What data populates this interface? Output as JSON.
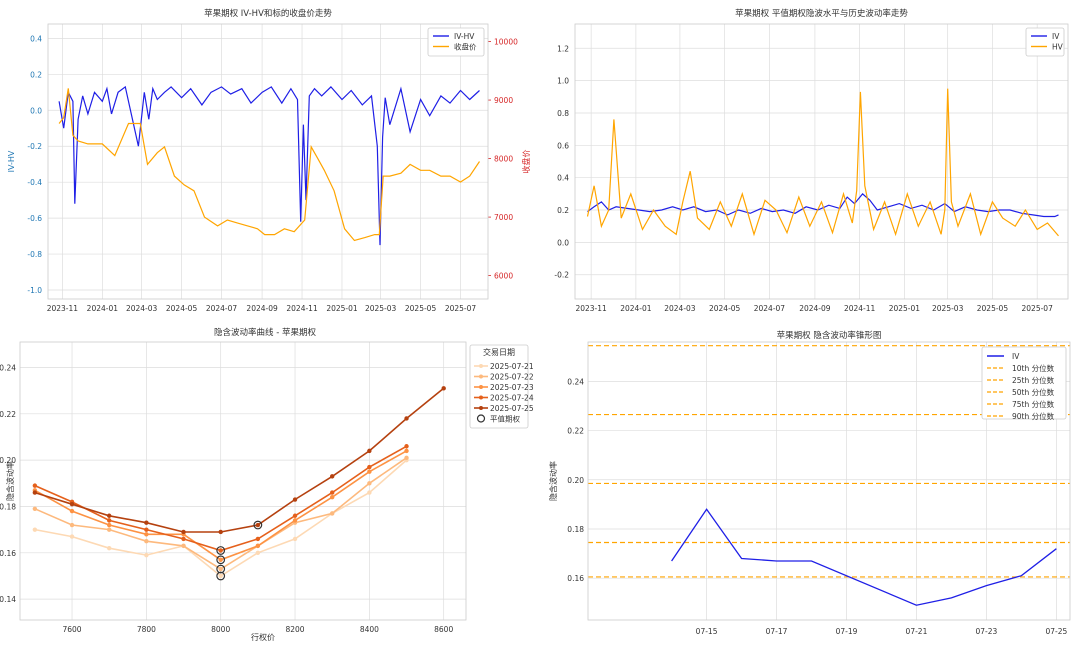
{
  "colors": {
    "blue": "#1f1fe6",
    "orange": "#ffa500",
    "red": "#d62728",
    "axis_blue": "#1f77b4",
    "grid": "#dddddd",
    "spine": "#cccccc"
  },
  "chart_data": [
    {
      "id": "p1",
      "type": "line",
      "title": "苹果期权 IV-HV和标的收盘价走势",
      "ylabel_left": "IV-HV",
      "ylabel_right": "收盘价",
      "ylim_left": [
        -1.05,
        0.48
      ],
      "ylim_right": [
        5600,
        10300
      ],
      "yticks_left": [
        -1.0,
        -0.8,
        -0.6,
        -0.4,
        -0.2,
        0.0,
        0.2,
        0.4
      ],
      "yticks_right": [
        6000,
        7000,
        8000,
        9000,
        10000
      ],
      "xlim": [
        "2023-10-10",
        "2025-08-12"
      ],
      "xticks": [
        "2023-11",
        "2024-01",
        "2024-03",
        "2024-05",
        "2024-07",
        "2024-09",
        "2024-11",
        "2025-01",
        "2025-03",
        "2025-05",
        "2025-07"
      ],
      "legend": "top-right",
      "grid": true,
      "series": [
        {
          "name": "IV-HV",
          "axis": "left",
          "color": "#1f1fe6",
          "x": [
            "2023-10-27",
            "2023-11-03",
            "2023-11-10",
            "2023-11-17",
            "2023-11-20",
            "2023-11-25",
            "2023-12-02",
            "2023-12-10",
            "2023-12-20",
            "2024-01-01",
            "2024-01-08",
            "2024-01-15",
            "2024-01-25",
            "2024-02-05",
            "2024-02-25",
            "2024-03-05",
            "2024-03-12",
            "2024-03-18",
            "2024-03-25",
            "2024-04-05",
            "2024-04-15",
            "2024-05-01",
            "2024-05-15",
            "2024-06-01",
            "2024-06-15",
            "2024-07-01",
            "2024-07-15",
            "2024-08-01",
            "2024-08-15",
            "2024-09-01",
            "2024-09-15",
            "2024-10-01",
            "2024-10-15",
            "2024-10-25",
            "2024-10-30",
            "2024-11-03",
            "2024-11-07",
            "2024-11-12",
            "2024-11-20",
            "2024-12-01",
            "2024-12-15",
            "2025-01-01",
            "2025-01-15",
            "2025-02-01",
            "2025-02-15",
            "2025-02-24",
            "2025-02-28",
            "2025-03-04",
            "2025-03-08",
            "2025-03-15",
            "2025-04-01",
            "2025-04-15",
            "2025-05-01",
            "2025-05-15",
            "2025-06-01",
            "2025-06-15",
            "2025-07-01",
            "2025-07-15",
            "2025-07-30"
          ],
          "values": [
            0.05,
            -0.1,
            0.1,
            0.05,
            -0.52,
            -0.05,
            0.08,
            -0.02,
            0.1,
            0.05,
            0.12,
            -0.02,
            0.1,
            0.13,
            -0.2,
            0.1,
            -0.05,
            0.12,
            0.06,
            0.1,
            0.13,
            0.07,
            0.12,
            0.03,
            0.1,
            0.13,
            0.09,
            0.12,
            0.04,
            0.1,
            0.13,
            0.04,
            0.12,
            0.06,
            -0.62,
            -0.08,
            -0.5,
            0.08,
            0.12,
            0.08,
            0.13,
            0.06,
            0.11,
            0.03,
            0.08,
            -0.2,
            -0.75,
            -0.15,
            0.07,
            -0.08,
            0.12,
            -0.12,
            0.06,
            -0.03,
            0.08,
            0.04,
            0.11,
            0.06,
            0.11
          ]
        },
        {
          "name": "收盘价",
          "axis": "right",
          "color": "#ffa500",
          "x": [
            "2023-10-27",
            "2023-11-03",
            "2023-11-10",
            "2023-11-17",
            "2023-11-25",
            "2023-12-10",
            "2024-01-01",
            "2024-01-20",
            "2024-02-10",
            "2024-02-28",
            "2024-03-10",
            "2024-03-25",
            "2024-04-05",
            "2024-04-20",
            "2024-05-05",
            "2024-05-20",
            "2024-06-05",
            "2024-06-25",
            "2024-07-10",
            "2024-07-25",
            "2024-08-10",
            "2024-08-25",
            "2024-09-05",
            "2024-09-20",
            "2024-10-05",
            "2024-10-20",
            "2024-11-05",
            "2024-11-15",
            "2024-11-25",
            "2024-12-05",
            "2024-12-20",
            "2025-01-05",
            "2025-01-20",
            "2025-02-05",
            "2025-02-20",
            "2025-02-27",
            "2025-03-05",
            "2025-03-15",
            "2025-04-01",
            "2025-04-15",
            "2025-05-01",
            "2025-05-15",
            "2025-06-01",
            "2025-06-15",
            "2025-07-01",
            "2025-07-15",
            "2025-07-30"
          ],
          "values": [
            8600,
            8700,
            9200,
            8400,
            8300,
            8250,
            8250,
            8050,
            8600,
            8600,
            7900,
            8100,
            8200,
            7700,
            7550,
            7450,
            7000,
            6850,
            6950,
            6900,
            6850,
            6800,
            6700,
            6700,
            6800,
            6750,
            6950,
            8200,
            8000,
            7800,
            7450,
            6800,
            6600,
            6650,
            6700,
            6700,
            7700,
            7700,
            7750,
            7900,
            7800,
            7800,
            7700,
            7700,
            7600,
            7700,
            7950
          ]
        }
      ]
    },
    {
      "id": "p2",
      "type": "line",
      "title": "苹果期权 平值期权隐波水平与历史波动率走势",
      "ylim": [
        -0.35,
        1.35
      ],
      "yticks": [
        -0.2,
        0.0,
        0.2,
        0.4,
        0.6,
        0.8,
        1.0,
        1.2
      ],
      "xlim": [
        "2023-10-10",
        "2025-08-12"
      ],
      "xticks": [
        "2023-11",
        "2024-01",
        "2024-03",
        "2024-05",
        "2024-07",
        "2024-09",
        "2024-11",
        "2025-01",
        "2025-03",
        "2025-05",
        "2025-07"
      ],
      "legend": "top-right",
      "grid": true,
      "series": [
        {
          "name": "IV",
          "color": "#1f1fe6",
          "x": [
            "2023-10-27",
            "2023-11-05",
            "2023-11-15",
            "2023-11-25",
            "2023-12-05",
            "2023-12-20",
            "2024-01-05",
            "2024-01-20",
            "2024-02-05",
            "2024-02-20",
            "2024-03-05",
            "2024-03-20",
            "2024-04-05",
            "2024-04-20",
            "2024-05-05",
            "2024-05-20",
            "2024-06-05",
            "2024-06-20",
            "2024-07-05",
            "2024-07-20",
            "2024-08-05",
            "2024-08-20",
            "2024-09-05",
            "2024-09-20",
            "2024-10-05",
            "2024-10-15",
            "2024-10-25",
            "2024-11-05",
            "2024-11-15",
            "2024-11-25",
            "2024-12-10",
            "2024-12-25",
            "2025-01-10",
            "2025-01-25",
            "2025-02-10",
            "2025-02-25",
            "2025-03-10",
            "2025-03-25",
            "2025-04-10",
            "2025-04-25",
            "2025-05-10",
            "2025-05-25",
            "2025-06-10",
            "2025-06-25",
            "2025-07-10",
            "2025-07-25",
            "2025-07-30"
          ],
          "values": [
            0.19,
            0.22,
            0.25,
            0.2,
            0.22,
            0.21,
            0.2,
            0.19,
            0.2,
            0.22,
            0.2,
            0.22,
            0.19,
            0.2,
            0.17,
            0.2,
            0.18,
            0.21,
            0.19,
            0.2,
            0.18,
            0.22,
            0.2,
            0.23,
            0.21,
            0.28,
            0.24,
            0.3,
            0.26,
            0.2,
            0.22,
            0.24,
            0.21,
            0.23,
            0.2,
            0.24,
            0.19,
            0.22,
            0.2,
            0.19,
            0.2,
            0.2,
            0.18,
            0.17,
            0.16,
            0.16,
            0.17
          ]
        },
        {
          "name": "HV",
          "color": "#ffa500",
          "x": [
            "2023-10-27",
            "2023-11-05",
            "2023-11-15",
            "2023-11-25",
            "2023-12-02",
            "2023-12-12",
            "2023-12-25",
            "2024-01-10",
            "2024-01-25",
            "2024-02-10",
            "2024-02-25",
            "2024-03-05",
            "2024-03-15",
            "2024-03-25",
            "2024-04-10",
            "2024-04-25",
            "2024-05-10",
            "2024-05-25",
            "2024-06-10",
            "2024-06-25",
            "2024-07-10",
            "2024-07-25",
            "2024-08-10",
            "2024-08-25",
            "2024-09-10",
            "2024-09-25",
            "2024-10-10",
            "2024-10-22",
            "2024-10-28",
            "2024-11-02",
            "2024-11-08",
            "2024-11-20",
            "2024-12-05",
            "2024-12-20",
            "2025-01-05",
            "2025-01-20",
            "2025-02-05",
            "2025-02-20",
            "2025-02-25",
            "2025-03-01",
            "2025-03-06",
            "2025-03-15",
            "2025-04-01",
            "2025-04-15",
            "2025-05-01",
            "2025-05-15",
            "2025-06-01",
            "2025-06-15",
            "2025-07-01",
            "2025-07-15",
            "2025-07-30"
          ],
          "values": [
            0.16,
            0.35,
            0.1,
            0.2,
            0.76,
            0.15,
            0.3,
            0.08,
            0.2,
            0.1,
            0.05,
            0.25,
            0.44,
            0.15,
            0.08,
            0.25,
            0.1,
            0.3,
            0.05,
            0.26,
            0.2,
            0.06,
            0.28,
            0.1,
            0.25,
            0.06,
            0.3,
            0.12,
            0.32,
            0.93,
            0.35,
            0.08,
            0.25,
            0.05,
            0.3,
            0.1,
            0.25,
            0.05,
            0.2,
            0.95,
            0.25,
            0.1,
            0.3,
            0.05,
            0.25,
            0.15,
            0.1,
            0.2,
            0.08,
            0.12,
            0.04
          ]
        }
      ]
    },
    {
      "id": "p3",
      "type": "line",
      "title": "隐含波动率曲线 - 苹果期权",
      "xlabel": "行权价",
      "ylabel": "隐含波动率",
      "xlim": [
        7460,
        8660
      ],
      "ylim": [
        0.131,
        0.251
      ],
      "xticks": [
        7600,
        7800,
        8000,
        8200,
        8400,
        8600
      ],
      "yticks": [
        0.14,
        0.16,
        0.18,
        0.2,
        0.22,
        0.24
      ],
      "legend_title": "交易日期",
      "legend": "top-right",
      "grid": true,
      "series": [
        {
          "name": "2025-07-21",
          "color": "#fdd9b4",
          "x": [
            7500,
            7600,
            7700,
            7800,
            7900,
            8000,
            8100,
            8200,
            8300,
            8400,
            8500
          ],
          "values": [
            0.17,
            0.167,
            0.162,
            0.159,
            0.163,
            0.15,
            0.16,
            0.166,
            0.177,
            0.186,
            0.2
          ]
        },
        {
          "name": "2025-07-22",
          "color": "#fdb97d",
          "x": [
            7500,
            7600,
            7700,
            7800,
            7900,
            8000,
            8100,
            8200,
            8300,
            8400,
            8500
          ],
          "values": [
            0.179,
            0.172,
            0.17,
            0.165,
            0.163,
            0.153,
            0.163,
            0.173,
            0.177,
            0.19,
            0.201
          ]
        },
        {
          "name": "2025-07-23",
          "color": "#fd9243",
          "x": [
            7500,
            7600,
            7700,
            7800,
            7900,
            8000,
            8100,
            8200,
            8300,
            8400,
            8500
          ],
          "values": [
            0.187,
            0.178,
            0.172,
            0.168,
            0.168,
            0.157,
            0.163,
            0.174,
            0.184,
            0.195,
            0.204
          ]
        },
        {
          "name": "2025-07-24",
          "color": "#e5601b",
          "x": [
            7500,
            7600,
            7700,
            7800,
            7900,
            8000,
            8100,
            8200,
            8300,
            8400,
            8500
          ],
          "values": [
            0.189,
            0.182,
            0.174,
            0.17,
            0.166,
            0.161,
            0.166,
            0.176,
            0.186,
            0.197,
            0.206
          ]
        },
        {
          "name": "2025-07-25",
          "color": "#b5410f",
          "x": [
            7500,
            7600,
            7700,
            7800,
            7900,
            8000,
            8100,
            8200,
            8300,
            8400,
            8500,
            8600
          ],
          "values": [
            0.186,
            0.181,
            0.176,
            0.173,
            0.169,
            0.169,
            0.172,
            0.183,
            0.193,
            0.204,
            0.218,
            0.231
          ]
        }
      ],
      "atm_points": [
        {
          "x": 8000,
          "y": 0.15
        },
        {
          "x": 8000,
          "y": 0.153
        },
        {
          "x": 8000,
          "y": 0.157
        },
        {
          "x": 8000,
          "y": 0.161
        },
        {
          "x": 8100,
          "y": 0.172
        }
      ],
      "atm_label": "平值期权"
    },
    {
      "id": "p4",
      "type": "line",
      "title": "苹果期权 隐含波动率锥形图",
      "ylabel": "隐含波动率",
      "xlim": [
        "2025-07-12",
        "2025-07-25"
      ],
      "ylim": [
        0.143,
        0.256
      ],
      "xticks": [
        "07-15",
        "07-17",
        "07-19",
        "07-21",
        "07-23",
        "07-25"
      ],
      "yticks": [
        0.16,
        0.18,
        0.2,
        0.22,
        0.24
      ],
      "legend": "top-right",
      "grid": true,
      "series": [
        {
          "name": "IV",
          "color": "#1f1fe6",
          "x": [
            "07-14",
            "07-15",
            "07-16",
            "07-17",
            "07-18",
            "07-21",
            "07-22",
            "07-23",
            "07-24",
            "07-25"
          ],
          "values": [
            0.167,
            0.188,
            0.168,
            0.167,
            0.167,
            0.149,
            0.152,
            0.157,
            0.161,
            0.172
          ]
        }
      ],
      "percentiles": [
        {
          "name": "10th 分位数",
          "value": 0.1605
        },
        {
          "name": "25th 分位数",
          "value": 0.1745
        },
        {
          "name": "50th 分位数",
          "value": 0.1985
        },
        {
          "name": "75th 分位数",
          "value": 0.2265
        },
        {
          "name": "90th 分位数",
          "value": 0.2545
        }
      ]
    }
  ]
}
